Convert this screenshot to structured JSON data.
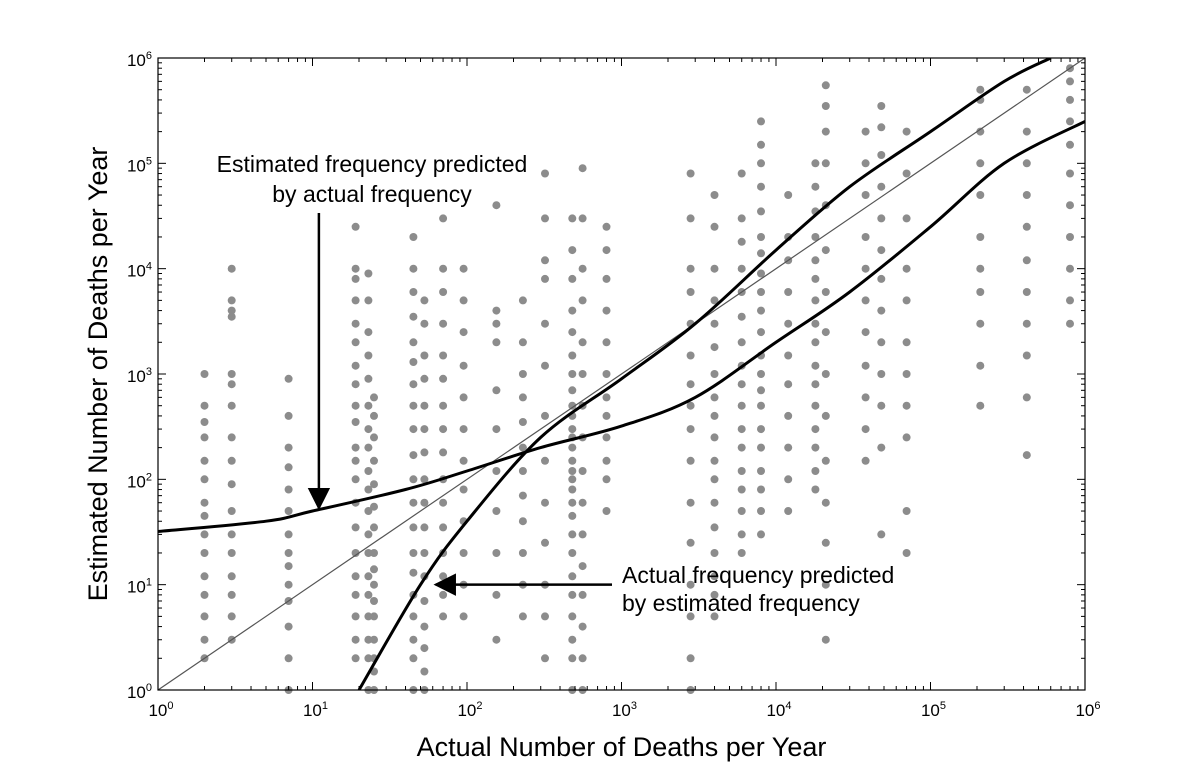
{
  "chart_data": {
    "type": "scatter",
    "title": "",
    "xlabel": "Actual Number of Deaths per Year",
    "ylabel": "Estimated Number of Deaths per Year",
    "xscale": "log",
    "yscale": "log",
    "xlim": [
      1,
      1000000
    ],
    "ylim": [
      1,
      1000000
    ],
    "grid": false,
    "point_color": "#8c8c8c",
    "line_color": "#000000",
    "x_ticks": [
      {
        "base": "10",
        "exp": "0",
        "value": 1
      },
      {
        "base": "10",
        "exp": "1",
        "value": 10
      },
      {
        "base": "10",
        "exp": "2",
        "value": 100
      },
      {
        "base": "10",
        "exp": "3",
        "value": 1000
      },
      {
        "base": "10",
        "exp": "4",
        "value": 10000
      },
      {
        "base": "10",
        "exp": "5",
        "value": 100000
      },
      {
        "base": "10",
        "exp": "6",
        "value": 1000000
      }
    ],
    "y_ticks": [
      {
        "base": "10",
        "exp": "0",
        "value": 1
      },
      {
        "base": "10",
        "exp": "1",
        "value": 10
      },
      {
        "base": "10",
        "exp": "2",
        "value": 100
      },
      {
        "base": "10",
        "exp": "3",
        "value": 1000
      },
      {
        "base": "10",
        "exp": "4",
        "value": 10000
      },
      {
        "base": "10",
        "exp": "5",
        "value": 100000
      },
      {
        "base": "10",
        "exp": "6",
        "value": 1000000
      }
    ],
    "columns": [
      {
        "x": 2,
        "y": [
          2,
          3,
          5,
          8,
          12,
          20,
          30,
          45,
          60,
          100,
          150,
          250,
          350,
          500,
          1000
        ]
      },
      {
        "x": 3,
        "y": [
          3,
          5,
          8,
          12,
          20,
          30,
          50,
          90,
          150,
          250,
          500,
          800,
          1000,
          3500,
          4000,
          5000,
          10000
        ]
      },
      {
        "x": 7,
        "y": [
          1,
          2,
          4,
          7,
          10,
          15,
          20,
          30,
          50,
          80,
          130,
          200,
          400,
          900
        ]
      },
      {
        "x": 19,
        "y": [
          2,
          3,
          5,
          8,
          12,
          20,
          35,
          60,
          100,
          150,
          200,
          350,
          500,
          800,
          1200,
          2000,
          3000,
          5000,
          8000,
          10000,
          25000
        ]
      },
      {
        "x": 23,
        "y": [
          1,
          2,
          3,
          5,
          8,
          12,
          20,
          30,
          50,
          80,
          120,
          200,
          300,
          500,
          900,
          1500,
          2500,
          5000,
          9000
        ]
      },
      {
        "x": 25,
        "y": [
          1,
          1.5,
          2,
          3,
          5,
          7,
          10,
          14,
          20,
          35,
          55,
          90,
          150,
          250,
          400,
          600
        ]
      },
      {
        "x": 45,
        "y": [
          1,
          2,
          3,
          5,
          8,
          13,
          20,
          35,
          60,
          100,
          170,
          300,
          500,
          800,
          1300,
          2000,
          3500,
          6000,
          10000,
          20000
        ]
      },
      {
        "x": 53,
        "y": [
          1,
          1.5,
          2.5,
          4,
          7,
          12,
          20,
          35,
          60,
          100,
          180,
          300,
          500,
          900,
          1500,
          3000,
          5000
        ]
      },
      {
        "x": 70,
        "y": [
          5,
          8,
          12,
          20,
          35,
          60,
          100,
          180,
          300,
          500,
          900,
          1500,
          3000,
          6000,
          10000,
          30000
        ]
      },
      {
        "x": 95,
        "y": [
          5,
          10,
          20,
          40,
          80,
          150,
          300,
          600,
          1200,
          2500,
          5000,
          10000
        ]
      },
      {
        "x": 155,
        "y": [
          3,
          8,
          20,
          50,
          120,
          300,
          700,
          2000,
          3000,
          4000,
          40000
        ]
      },
      {
        "x": 230,
        "y": [
          5,
          10,
          20,
          40,
          70,
          120,
          200,
          350,
          600,
          1000,
          2000,
          5000
        ]
      },
      {
        "x": 320,
        "y": [
          2,
          5,
          10,
          25,
          60,
          150,
          400,
          1200,
          3000,
          8000,
          12000,
          30000,
          80000
        ]
      },
      {
        "x": 480,
        "y": [
          1,
          2,
          3,
          5,
          8,
          12,
          20,
          30,
          45,
          60,
          80,
          100,
          120,
          150,
          200,
          250,
          300,
          400,
          500,
          700,
          1000,
          1500,
          2500,
          4000,
          8000,
          15000,
          30000
        ]
      },
      {
        "x": 560,
        "y": [
          1,
          2,
          4,
          8,
          15,
          30,
          60,
          120,
          250,
          500,
          1000,
          2000,
          5000,
          10000,
          30000,
          90000
        ]
      },
      {
        "x": 800,
        "y": [
          50,
          100,
          150,
          250,
          400,
          600,
          1000,
          2000,
          4000,
          8000,
          15000,
          25000
        ]
      },
      {
        "x": 2800,
        "y": [
          1,
          2,
          5,
          10,
          25,
          60,
          150,
          300,
          500,
          800,
          1500,
          3000,
          6000,
          10000,
          30000,
          80000
        ]
      },
      {
        "x": 4000,
        "y": [
          5,
          8,
          12,
          20,
          35,
          60,
          100,
          150,
          250,
          400,
          600,
          1000,
          1800,
          3000,
          5000,
          10000,
          25000,
          50000
        ]
      },
      {
        "x": 6000,
        "y": [
          20,
          30,
          50,
          80,
          120,
          200,
          300,
          500,
          800,
          1200,
          2000,
          3500,
          6000,
          10000,
          18000,
          30000,
          80000
        ]
      },
      {
        "x": 8000,
        "y": [
          30,
          50,
          80,
          120,
          200,
          300,
          500,
          700,
          1000,
          1500,
          2500,
          4000,
          6000,
          9000,
          14000,
          20000,
          35000,
          60000,
          100000,
          150000,
          250000
        ]
      },
      {
        "x": 12000,
        "y": [
          50,
          100,
          200,
          400,
          800,
          1500,
          3000,
          6000,
          12000,
          20000,
          50000
        ]
      },
      {
        "x": 18000,
        "y": [
          80,
          120,
          200,
          300,
          500,
          800,
          1200,
          2000,
          3000,
          5000,
          8000,
          12000,
          20000,
          35000,
          60000,
          100000
        ]
      },
      {
        "x": 21000,
        "y": [
          3,
          10,
          25,
          60,
          150,
          400,
          1000,
          2500,
          6000,
          15000,
          40000,
          100000,
          200000,
          350000,
          550000
        ]
      },
      {
        "x": 38000,
        "y": [
          150,
          300,
          600,
          1200,
          2500,
          5000,
          10000,
          20000,
          50000,
          100000,
          200000
        ]
      },
      {
        "x": 48000,
        "y": [
          30,
          200,
          500,
          1000,
          2000,
          4000,
          8000,
          15000,
          30000,
          60000,
          120000,
          220000,
          350000
        ]
      },
      {
        "x": 70000,
        "y": [
          20,
          50,
          250,
          500,
          1000,
          2000,
          5000,
          10000,
          30000,
          80000,
          200000
        ]
      },
      {
        "x": 210000,
        "y": [
          500,
          1200,
          3000,
          6000,
          10000,
          20000,
          50000,
          100000,
          200000,
          400000,
          500000
        ]
      },
      {
        "x": 420000,
        "y": [
          170,
          600,
          1500,
          3000,
          6000,
          12000,
          25000,
          50000,
          100000,
          200000,
          500000
        ]
      },
      {
        "x": 800000,
        "y": [
          3000,
          5000,
          10000,
          20000,
          40000,
          80000,
          150000,
          250000,
          400000,
          600000,
          800000
        ]
      }
    ],
    "curves": [
      {
        "name": "identity",
        "points": [
          [
            1,
            1
          ],
          [
            1000000,
            1000000
          ]
        ]
      },
      {
        "name": "Estimated frequency predicted by actual frequency",
        "points": [
          [
            1,
            32
          ],
          [
            5,
            40
          ],
          [
            10,
            50
          ],
          [
            40,
            80
          ],
          [
            100,
            120
          ],
          [
            300,
            200
          ],
          [
            1000,
            320
          ],
          [
            3000,
            600
          ],
          [
            10000,
            2000
          ],
          [
            30000,
            6000
          ],
          [
            100000,
            25000
          ],
          [
            300000,
            100000
          ],
          [
            1000000,
            250000
          ]
        ]
      },
      {
        "name": "Actual frequency predicted by estimated frequency",
        "points": [
          [
            20,
            1
          ],
          [
            50,
            10
          ],
          [
            100,
            40
          ],
          [
            300,
            250
          ],
          [
            1000,
            900
          ],
          [
            3000,
            3000
          ],
          [
            10000,
            15000
          ],
          [
            30000,
            60000
          ],
          [
            100000,
            200000
          ],
          [
            300000,
            600000
          ],
          [
            600000,
            1000000
          ]
        ]
      }
    ],
    "annotations": [
      {
        "lines": [
          "Estimated frequency predicted",
          "by actual frequency"
        ],
        "target": [
          11,
          50
        ]
      },
      {
        "lines": [
          "Actual frequency predicted",
          "by estimated frequency"
        ],
        "target": [
          60,
          10
        ]
      }
    ]
  }
}
